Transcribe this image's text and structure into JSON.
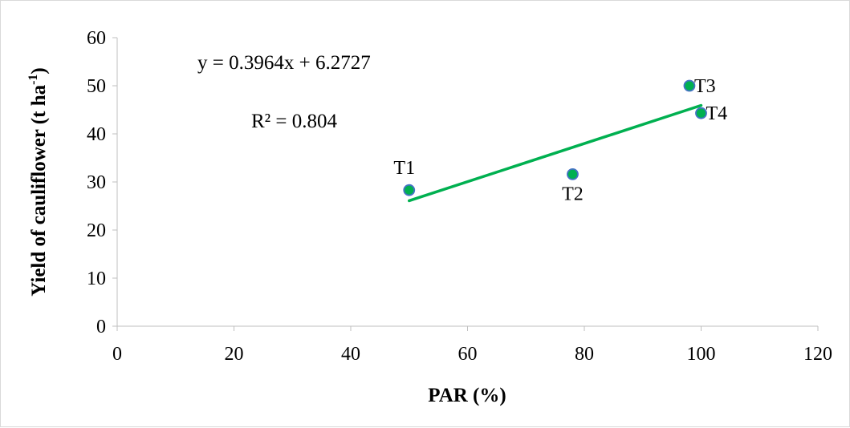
{
  "chart_data": {
    "type": "scatter",
    "xlabel": "PAR (%)",
    "ylabel": {
      "text": "Yield of cauliflower (t ha",
      "superscript": "-1",
      "suffix": ")"
    },
    "xlim": [
      0,
      120
    ],
    "ylim": [
      0,
      60
    ],
    "x_ticks": [
      0,
      20,
      40,
      60,
      80,
      100,
      120
    ],
    "y_ticks": [
      0,
      10,
      20,
      30,
      40,
      50,
      60
    ],
    "grid": false,
    "points": [
      {
        "label": "T1",
        "x": 50,
        "y": 28.3
      },
      {
        "label": "T2",
        "x": 78,
        "y": 31.6
      },
      {
        "label": "T3",
        "x": 98,
        "y": 50.0
      },
      {
        "label": "T4",
        "x": 100,
        "y": 44.3
      }
    ],
    "trendline": {
      "type": "linear",
      "slope": 0.3964,
      "intercept": 6.2727,
      "x_range": [
        50,
        100
      ],
      "color": "#00b050",
      "equation": "y = 0.3964x + 6.2727",
      "r_squared": "R² = 0.804"
    },
    "marker_color": "#00b050",
    "marker_edge": "#4472c4"
  }
}
